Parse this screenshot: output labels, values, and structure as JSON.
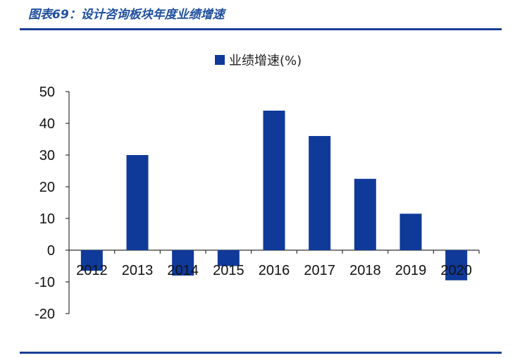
{
  "header": {
    "figure_title": "图表69：设计咨询板块年度业绩增速"
  },
  "chart_data": {
    "type": "bar",
    "title": "",
    "legend": {
      "placement": "top-center"
    },
    "series": [
      {
        "name": "业绩增速(%)",
        "color": "#0f3a9a",
        "values": [
          -6.5,
          30,
          -8,
          -5,
          44,
          36,
          22.5,
          11.5,
          -9.5
        ]
      }
    ],
    "categories": [
      "2012",
      "2013",
      "2014",
      "2015",
      "2016",
      "2017",
      "2018",
      "2019",
      "2020"
    ],
    "ylim": [
      -20,
      50
    ],
    "yticks": [
      -20,
      -10,
      0,
      10,
      20,
      30,
      40,
      50
    ],
    "xlabel": "",
    "ylabel": "",
    "grid": false
  }
}
